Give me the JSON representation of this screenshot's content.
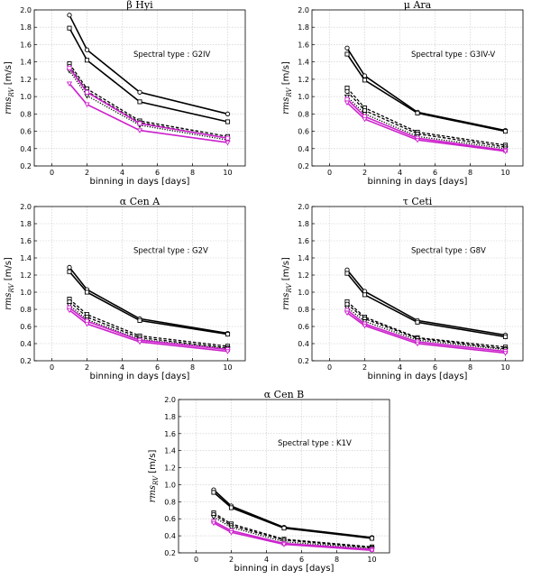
{
  "chart_data": [
    {
      "type": "line",
      "title": "β Hyi",
      "annotation": "Spectral type : G2IV",
      "xlabel": "binning in days [days]",
      "ylabel": "rms_RV [m/s]",
      "xlim": [
        -1,
        11
      ],
      "ylim": [
        0.2,
        2.0
      ],
      "xticks": [
        0,
        2,
        4,
        6,
        8,
        10
      ],
      "yticks": [
        0.2,
        0.4,
        0.6,
        0.8,
        1.0,
        1.2,
        1.4,
        1.6,
        1.8,
        2.0
      ],
      "x": [
        1,
        2,
        5,
        10
      ],
      "series": [
        {
          "name": "solid-circle",
          "style": "solid",
          "color": "#000000",
          "marker": "circle",
          "values": [
            1.94,
            1.54,
            1.05,
            0.8
          ]
        },
        {
          "name": "solid-square",
          "style": "solid",
          "color": "#000000",
          "marker": "square",
          "values": [
            1.79,
            1.42,
            0.94,
            0.71
          ]
        },
        {
          "name": "dashed-square",
          "style": "dashed",
          "color": "#000000",
          "marker": "square",
          "values": [
            1.38,
            1.09,
            0.72,
            0.54
          ]
        },
        {
          "name": "dashed-circle",
          "style": "dashed",
          "color": "#000000",
          "marker": "circle",
          "values": [
            1.35,
            1.06,
            0.7,
            0.52
          ]
        },
        {
          "name": "dotted-triangle",
          "style": "dotted",
          "color": "#000000",
          "marker": "triangle",
          "values": [
            1.3,
            1.01,
            0.67,
            0.5
          ]
        },
        {
          "name": "magenta-square",
          "style": "solid",
          "color": "#cc22cc",
          "marker": "square",
          "values": [
            1.33,
            1.05,
            0.69,
            0.52
          ]
        },
        {
          "name": "magenta-triangle",
          "style": "solid",
          "color": "#cc22cc",
          "marker": "triangle",
          "values": [
            1.15,
            0.91,
            0.61,
            0.47
          ]
        }
      ]
    },
    {
      "type": "line",
      "title": "μ Ara",
      "annotation": "Spectral type : G3IV-V",
      "xlabel": "binning in days [days]",
      "ylabel": "rms_RV [m/s]",
      "xlim": [
        -1,
        11
      ],
      "ylim": [
        0.2,
        2.0
      ],
      "xticks": [
        0,
        2,
        4,
        6,
        8,
        10
      ],
      "yticks": [
        0.2,
        0.4,
        0.6,
        0.8,
        1.0,
        1.2,
        1.4,
        1.6,
        1.8,
        2.0
      ],
      "x": [
        1,
        2,
        5,
        10
      ],
      "series": [
        {
          "name": "solid-circle",
          "style": "solid",
          "color": "#000000",
          "marker": "circle",
          "values": [
            1.56,
            1.24,
            0.82,
            0.61
          ]
        },
        {
          "name": "solid-square",
          "style": "solid",
          "color": "#000000",
          "marker": "square",
          "values": [
            1.49,
            1.19,
            0.81,
            0.6
          ]
        },
        {
          "name": "dashed-square",
          "style": "dashed",
          "color": "#000000",
          "marker": "square",
          "values": [
            1.1,
            0.87,
            0.59,
            0.44
          ]
        },
        {
          "name": "dashed-circle",
          "style": "dashed",
          "color": "#000000",
          "marker": "circle",
          "values": [
            1.06,
            0.84,
            0.57,
            0.42
          ]
        },
        {
          "name": "dotted-triangle",
          "style": "dotted",
          "color": "#000000",
          "marker": "triangle",
          "values": [
            1.0,
            0.8,
            0.54,
            0.4
          ]
        },
        {
          "name": "magenta-square",
          "style": "solid",
          "color": "#cc22cc",
          "marker": "square",
          "values": [
            0.97,
            0.77,
            0.52,
            0.38
          ]
        },
        {
          "name": "magenta-triangle",
          "style": "solid",
          "color": "#cc22cc",
          "marker": "triangle",
          "values": [
            0.93,
            0.74,
            0.5,
            0.37
          ]
        }
      ]
    },
    {
      "type": "line",
      "title": "α Cen A",
      "annotation": "Spectral type : G2V",
      "xlabel": "binning in days [days]",
      "ylabel": "rms_RV [m/s]",
      "xlim": [
        -1,
        11
      ],
      "ylim": [
        0.2,
        2.0
      ],
      "xticks": [
        0,
        2,
        4,
        6,
        8,
        10
      ],
      "yticks": [
        0.2,
        0.4,
        0.6,
        0.8,
        1.0,
        1.2,
        1.4,
        1.6,
        1.8,
        2.0
      ],
      "x": [
        1,
        2,
        5,
        10
      ],
      "series": [
        {
          "name": "solid-circle",
          "style": "solid",
          "color": "#000000",
          "marker": "circle",
          "values": [
            1.29,
            1.03,
            0.69,
            0.52
          ]
        },
        {
          "name": "solid-square",
          "style": "solid",
          "color": "#000000",
          "marker": "square",
          "values": [
            1.24,
            1.0,
            0.67,
            0.51
          ]
        },
        {
          "name": "dashed-square",
          "style": "dashed",
          "color": "#000000",
          "marker": "square",
          "values": [
            0.92,
            0.74,
            0.49,
            0.37
          ]
        },
        {
          "name": "dashed-circle",
          "style": "dashed",
          "color": "#000000",
          "marker": "circle",
          "values": [
            0.89,
            0.71,
            0.47,
            0.35
          ]
        },
        {
          "name": "dotted-triangle",
          "style": "dotted",
          "color": "#000000",
          "marker": "triangle",
          "values": [
            0.85,
            0.68,
            0.45,
            0.34
          ]
        },
        {
          "name": "magenta-square",
          "style": "solid",
          "color": "#cc22cc",
          "marker": "square",
          "values": [
            0.82,
            0.66,
            0.44,
            0.33
          ]
        },
        {
          "name": "magenta-triangle",
          "style": "solid",
          "color": "#cc22cc",
          "marker": "triangle",
          "values": [
            0.79,
            0.63,
            0.42,
            0.31
          ]
        }
      ]
    },
    {
      "type": "line",
      "title": "τ Ceti",
      "annotation": "Spectral type : G8V",
      "xlabel": "binning in days [days]",
      "ylabel": "rms_RV [m/s]",
      "xlim": [
        -1,
        11
      ],
      "ylim": [
        0.2,
        2.0
      ],
      "xticks": [
        0,
        2,
        4,
        6,
        8,
        10
      ],
      "yticks": [
        0.2,
        0.4,
        0.6,
        0.8,
        1.0,
        1.2,
        1.4,
        1.6,
        1.8,
        2.0
      ],
      "x": [
        1,
        2,
        5,
        10
      ],
      "series": [
        {
          "name": "solid-circle",
          "style": "solid",
          "color": "#000000",
          "marker": "circle",
          "values": [
            1.26,
            1.01,
            0.67,
            0.5
          ]
        },
        {
          "name": "solid-square",
          "style": "solid",
          "color": "#000000",
          "marker": "square",
          "values": [
            1.22,
            0.97,
            0.65,
            0.48
          ]
        },
        {
          "name": "dashed-square",
          "style": "dashed",
          "color": "#000000",
          "marker": "square",
          "values": [
            0.89,
            0.71,
            0.47,
            0.36
          ]
        },
        {
          "name": "dashed-circle",
          "style": "dashed",
          "color": "#000000",
          "marker": "circle",
          "values": [
            0.86,
            0.69,
            0.46,
            0.34
          ]
        },
        {
          "name": "dotted-triangle",
          "style": "dotted",
          "color": "#000000",
          "marker": "triangle",
          "values": [
            0.82,
            0.66,
            0.44,
            0.33
          ]
        },
        {
          "name": "magenta-square",
          "style": "solid",
          "color": "#cc22cc",
          "marker": "square",
          "values": [
            0.79,
            0.63,
            0.42,
            0.31
          ]
        },
        {
          "name": "magenta-triangle",
          "style": "solid",
          "color": "#cc22cc",
          "marker": "triangle",
          "values": [
            0.76,
            0.61,
            0.4,
            0.29
          ]
        }
      ]
    },
    {
      "type": "line",
      "title": "α Cen B",
      "annotation": "Spectral type : K1V",
      "xlabel": "binning in days [days]",
      "ylabel": "rms_RV [m/s]",
      "xlim": [
        -1,
        11
      ],
      "ylim": [
        0.2,
        2.0
      ],
      "xticks": [
        0,
        2,
        4,
        6,
        8,
        10
      ],
      "yticks": [
        0.2,
        0.4,
        0.6,
        0.8,
        1.0,
        1.2,
        1.4,
        1.6,
        1.8,
        2.0
      ],
      "x": [
        1,
        2,
        5,
        10
      ],
      "series": [
        {
          "name": "solid-circle",
          "style": "solid",
          "color": "#000000",
          "marker": "circle",
          "values": [
            0.94,
            0.75,
            0.5,
            0.38
          ]
        },
        {
          "name": "solid-square",
          "style": "solid",
          "color": "#000000",
          "marker": "square",
          "values": [
            0.91,
            0.73,
            0.49,
            0.37
          ]
        },
        {
          "name": "dashed-square",
          "style": "dashed",
          "color": "#000000",
          "marker": "square",
          "values": [
            0.67,
            0.54,
            0.36,
            0.27
          ]
        },
        {
          "name": "dashed-circle",
          "style": "dashed",
          "color": "#000000",
          "marker": "circle",
          "values": [
            0.65,
            0.52,
            0.35,
            0.26
          ]
        },
        {
          "name": "dotted-triangle",
          "style": "dotted",
          "color": "#000000",
          "marker": "triangle",
          "values": [
            0.62,
            0.5,
            0.33,
            0.25
          ]
        },
        {
          "name": "magenta-square",
          "style": "solid",
          "color": "#cc22cc",
          "marker": "square",
          "values": [
            0.57,
            0.46,
            0.31,
            0.24
          ]
        },
        {
          "name": "magenta-triangle",
          "style": "solid",
          "color": "#cc22cc",
          "marker": "triangle",
          "values": [
            0.55,
            0.44,
            0.3,
            0.23
          ]
        }
      ]
    }
  ]
}
